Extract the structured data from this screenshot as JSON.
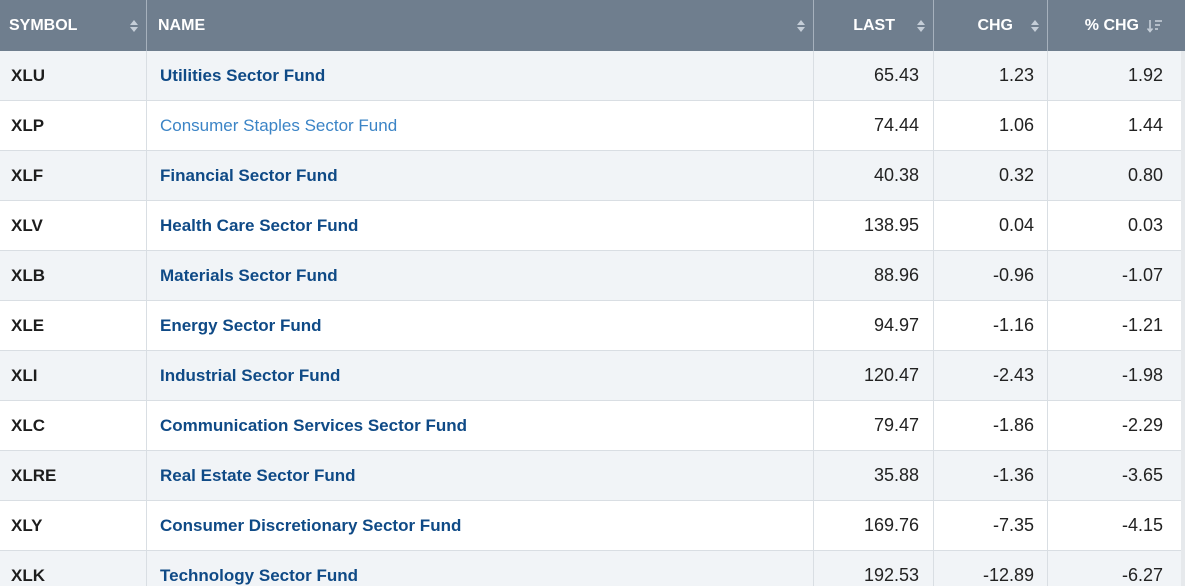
{
  "columns": {
    "symbol": "SYMBOL",
    "name": "NAME",
    "last": "LAST",
    "chg": "CHG",
    "pct_chg": "% CHG"
  },
  "sort": {
    "column": "pct_chg",
    "direction": "descending"
  },
  "rows": [
    {
      "symbol": "XLU",
      "name": "Utilities Sector Fund",
      "last": "65.43",
      "chg": "1.23",
      "pct": "1.92"
    },
    {
      "symbol": "XLP",
      "name": "Consumer Staples Sector Fund",
      "last": "74.44",
      "chg": "1.06",
      "pct": "1.44"
    },
    {
      "symbol": "XLF",
      "name": "Financial Sector Fund",
      "last": "40.38",
      "chg": "0.32",
      "pct": "0.80"
    },
    {
      "symbol": "XLV",
      "name": "Health Care Sector Fund",
      "last": "138.95",
      "chg": "0.04",
      "pct": "0.03"
    },
    {
      "symbol": "XLB",
      "name": "Materials Sector Fund",
      "last": "88.96",
      "chg": "-0.96",
      "pct": "-1.07"
    },
    {
      "symbol": "XLE",
      "name": "Energy Sector Fund",
      "last": "94.97",
      "chg": "-1.16",
      "pct": "-1.21"
    },
    {
      "symbol": "XLI",
      "name": "Industrial Sector Fund",
      "last": "120.47",
      "chg": "-2.43",
      "pct": "-1.98"
    },
    {
      "symbol": "XLC",
      "name": "Communication Services Sector Fund",
      "last": "79.47",
      "chg": "-1.86",
      "pct": "-2.29"
    },
    {
      "symbol": "XLRE",
      "name": "Real Estate Sector Fund",
      "last": "35.88",
      "chg": "-1.36",
      "pct": "-3.65"
    },
    {
      "symbol": "XLY",
      "name": "Consumer Discretionary Sector Fund",
      "last": "169.76",
      "chg": "-7.35",
      "pct": "-4.15"
    },
    {
      "symbol": "XLK",
      "name": "Technology Sector Fund",
      "last": "192.53",
      "chg": "-12.89",
      "pct": "-6.27"
    }
  ],
  "colors": {
    "header_bg": "#6f7e8e",
    "link": "#0f4a86",
    "link_hover": "#3b84c6",
    "row_alt": "#f1f4f7"
  }
}
